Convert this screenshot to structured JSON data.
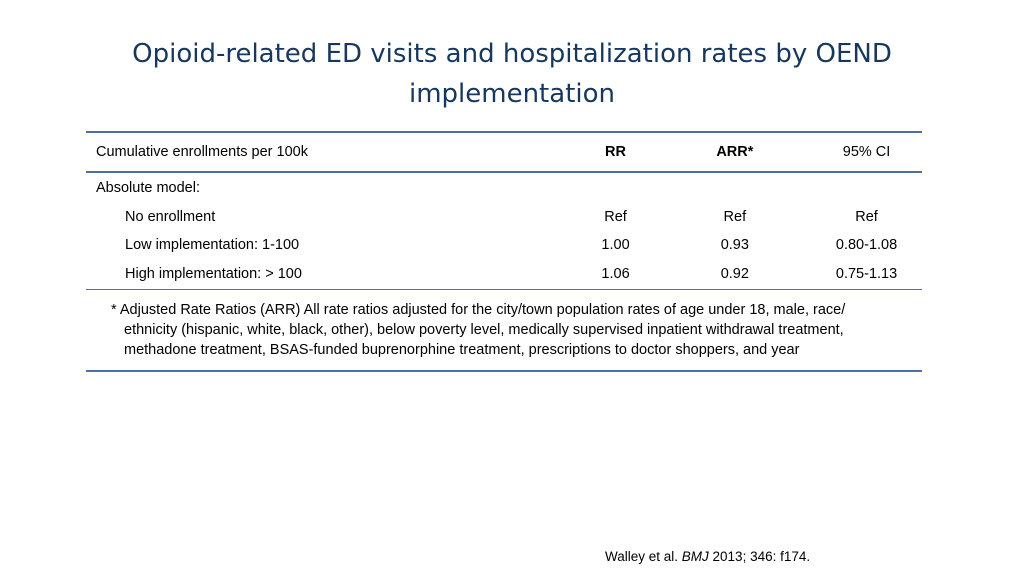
{
  "slide": {
    "title": "Opioid-related ED visits and hospitalization rates by  OEND implementation"
  },
  "table": {
    "headers": {
      "label": "Cumulative enrollments per 100k",
      "rr": "RR",
      "arr": "ARR*",
      "ci": "95% CI"
    },
    "section_label": "Absolute model:",
    "rows": [
      {
        "label": "No enrollment",
        "rr": "Ref",
        "arr": "Ref",
        "ci": "Ref"
      },
      {
        "label": "Low implementation: 1-100",
        "rr": "1.00",
        "arr": "0.93",
        "ci": "0.80-1.08"
      },
      {
        "label": "High implementation: > 100",
        "rr": "1.06",
        "arr": "0.92",
        "ci": "0.75-1.13"
      }
    ],
    "footnote": "* Adjusted Rate Ratios (ARR) All rate ratios adjusted for the city/town population rates of  age under 18, male, race/ ethnicity (hispanic, white, black, other), below poverty level, medically supervised inpatient withdrawal treatment, methadone treatment, BSAS-funded buprenorphine treatment, prescriptions to doctor shoppers, and year"
  },
  "citation": {
    "authors": "Walley et al. ",
    "journal": "BMJ",
    "details": " 2013; 346: f174."
  }
}
